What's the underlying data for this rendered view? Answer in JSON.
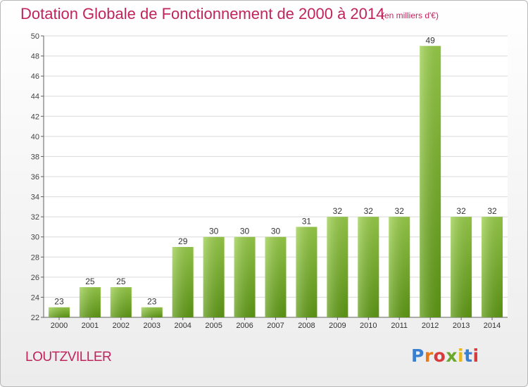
{
  "title": "Dotation Globale de Fonctionnement de 2000 à 2014",
  "subtitle": "(en milliers d'€)",
  "commune": "LOUTZVILLER",
  "logo": "Proxiti",
  "colors": {
    "title": "#c0245c",
    "bar_light": "#9bd04a",
    "bar_dark": "#5f9b14",
    "grid": "#d9d9d9",
    "axis": "#606060"
  },
  "chart_data": {
    "type": "bar",
    "categories": [
      "2000",
      "2001",
      "2002",
      "2003",
      "2004",
      "2005",
      "2006",
      "2007",
      "2008",
      "2009",
      "2010",
      "2011",
      "2012",
      "2013",
      "2014"
    ],
    "values": [
      23,
      25,
      25,
      23,
      29,
      30,
      30,
      30,
      31,
      32,
      32,
      32,
      49,
      32,
      32
    ],
    "value_labels": [
      "23",
      "25",
      "25",
      "23",
      "29",
      "30",
      "30",
      "30",
      "31",
      "32",
      "32",
      "32",
      "49",
      "32",
      "32"
    ],
    "title": "Dotation Globale de Fonctionnement de 2000 à 2014",
    "ylim": [
      22,
      50
    ],
    "yticks": [
      22,
      24,
      26,
      28,
      30,
      32,
      34,
      36,
      38,
      40,
      42,
      44,
      46,
      48,
      50
    ],
    "grid": true,
    "legend": false
  }
}
